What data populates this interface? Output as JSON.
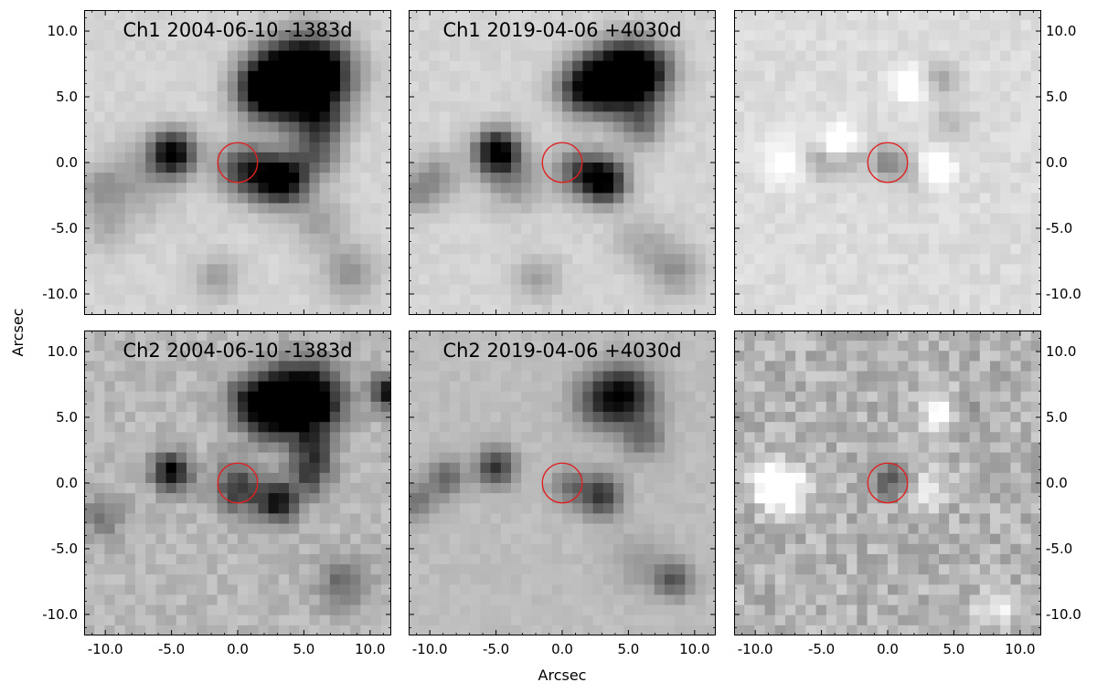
{
  "figure": {
    "xlabel": "Arcsec",
    "ylabel": "Arcsec"
  },
  "chart_data": {
    "type": "heatmap",
    "colormap": "gray",
    "xlim": [
      -11.6,
      11.6
    ],
    "ylim": [
      -11.6,
      11.6
    ],
    "xticks": [
      -10.0,
      -5.0,
      0.0,
      5.0,
      10.0
    ],
    "yticks": [
      10.0,
      5.0,
      0.0,
      -5.0,
      -10.0
    ],
    "xtick_labels": [
      "-10.0",
      "-5.0",
      "0.0",
      "5.0",
      "10.0"
    ],
    "ytick_labels": [
      "10.0",
      "5.0",
      "0.0",
      "-5.0",
      "-10.0"
    ],
    "marker": {
      "shape": "circle",
      "center": [
        0.0,
        0.0
      ],
      "radius": 1.5,
      "color": "#e02020"
    },
    "panels": [
      {
        "title": "Ch1 2004-06-10 -1383d",
        "row": 0,
        "col": 0,
        "kind": "image",
        "background": 0.83,
        "sources": [
          [
            4.8,
            6.4,
            2.2,
            0.8
          ],
          [
            3.2,
            6.0,
            1.8,
            0.55
          ],
          [
            6.4,
            6.9,
            1.8,
            0.5
          ],
          [
            1.8,
            5.6,
            1.5,
            0.5
          ],
          [
            -4.9,
            0.7,
            1.2,
            0.85
          ],
          [
            3.6,
            -1.4,
            1.3,
            0.75
          ],
          [
            1.8,
            -1.0,
            1.4,
            0.45
          ],
          [
            0.1,
            -0.4,
            1.4,
            0.4
          ],
          [
            6.2,
            3.0,
            1.3,
            0.4
          ],
          [
            6.0,
            0.5,
            1.3,
            0.35
          ],
          [
            -7.4,
            -1.4,
            2.0,
            0.2
          ],
          [
            -10.4,
            -2.0,
            1.2,
            0.2
          ],
          [
            6.2,
            -4.6,
            1.4,
            0.2
          ],
          [
            8.5,
            -8.4,
            1.5,
            0.25
          ],
          [
            -1.6,
            -8.8,
            1.2,
            0.2
          ],
          [
            -10.0,
            -5.0,
            1.2,
            0.15
          ]
        ]
      },
      {
        "title": "Ch1 2019-04-06 +4030d",
        "row": 0,
        "col": 1,
        "kind": "image",
        "background": 0.83,
        "sources": [
          [
            4.8,
            6.6,
            1.8,
            0.8
          ],
          [
            3.0,
            6.1,
            1.6,
            0.55
          ],
          [
            6.3,
            6.9,
            1.6,
            0.45
          ],
          [
            1.4,
            5.6,
            1.4,
            0.45
          ],
          [
            -4.9,
            0.8,
            1.2,
            0.9
          ],
          [
            3.2,
            -1.4,
            1.2,
            0.85
          ],
          [
            1.2,
            -0.7,
            1.3,
            0.45
          ],
          [
            6.0,
            2.8,
            1.2,
            0.35
          ],
          [
            -9.4,
            -1.0,
            1.3,
            0.25
          ],
          [
            -11.0,
            -2.4,
            1.0,
            0.25
          ],
          [
            -3.6,
            -1.6,
            1.5,
            0.25
          ],
          [
            8.5,
            -8.2,
            1.4,
            0.25
          ],
          [
            -1.8,
            -8.8,
            1.2,
            0.2
          ],
          [
            6.0,
            -6.0,
            1.5,
            0.15
          ]
        ]
      },
      {
        "title": "",
        "row": 0,
        "col": 2,
        "kind": "difference",
        "background": 0.86,
        "noise": 0.035,
        "sources": [
          [
            -3.6,
            1.4,
            0.9,
            -0.45
          ],
          [
            -3.0,
            0.4,
            0.8,
            0.3
          ],
          [
            0.0,
            0.0,
            0.9,
            0.35
          ],
          [
            2.2,
            -0.8,
            0.8,
            0.2
          ],
          [
            3.6,
            -0.4,
            0.8,
            -0.45
          ],
          [
            1.6,
            6.0,
            0.9,
            -0.25
          ],
          [
            4.0,
            6.4,
            0.9,
            0.2
          ],
          [
            -7.8,
            0.0,
            1.2,
            -0.2
          ],
          [
            -5.0,
            0.2,
            1.0,
            0.25
          ],
          [
            5.0,
            3.0,
            1.0,
            0.15
          ]
        ]
      },
      {
        "title": "Ch2 2004-06-10 -1383d",
        "row": 1,
        "col": 0,
        "kind": "image",
        "background": 0.72,
        "noise": 0.06,
        "sources": [
          [
            4.6,
            6.7,
            1.8,
            0.75
          ],
          [
            2.8,
            5.5,
            1.6,
            0.55
          ],
          [
            1.0,
            6.3,
            1.4,
            0.4
          ],
          [
            6.0,
            6.0,
            1.5,
            0.45
          ],
          [
            11.3,
            6.9,
            0.9,
            0.7
          ],
          [
            -5.0,
            0.8,
            1.0,
            0.75
          ],
          [
            3.0,
            -1.5,
            1.0,
            0.7
          ],
          [
            0.0,
            -0.4,
            1.3,
            0.5
          ],
          [
            5.4,
            0.6,
            1.2,
            0.4
          ],
          [
            5.8,
            2.6,
            1.1,
            0.35
          ],
          [
            8.0,
            -7.6,
            1.4,
            0.3
          ],
          [
            -10.2,
            -2.6,
            1.2,
            0.25
          ]
        ]
      },
      {
        "title": "Ch2 2019-04-06 +4030d",
        "row": 1,
        "col": 1,
        "kind": "image",
        "background": 0.74,
        "sources": [
          [
            4.8,
            6.7,
            1.6,
            0.6
          ],
          [
            2.8,
            6.2,
            1.5,
            0.35
          ],
          [
            -5.0,
            1.2,
            1.0,
            0.55
          ],
          [
            3.0,
            -1.0,
            1.1,
            0.55
          ],
          [
            0.6,
            -0.3,
            1.0,
            0.3
          ],
          [
            -8.8,
            0.4,
            1.0,
            0.35
          ],
          [
            -11.0,
            -1.4,
            1.0,
            0.3
          ],
          [
            6.2,
            3.4,
            1.1,
            0.3
          ],
          [
            8.4,
            -7.4,
            1.0,
            0.4
          ],
          [
            5.8,
            -6.0,
            1.4,
            0.15
          ]
        ]
      },
      {
        "title": "",
        "row": 1,
        "col": 2,
        "kind": "difference",
        "background": 0.7,
        "noise": 0.11,
        "sources": [
          [
            -8.6,
            0.0,
            1.1,
            -0.5
          ],
          [
            -7.6,
            -0.8,
            1.0,
            -0.35
          ],
          [
            0.0,
            0.2,
            1.0,
            0.35
          ],
          [
            3.2,
            -0.6,
            0.9,
            -0.3
          ],
          [
            4.2,
            5.2,
            1.0,
            -0.3
          ],
          [
            5.8,
            4.8,
            1.0,
            0.2
          ],
          [
            8.0,
            -9.6,
            1.0,
            -0.25
          ]
        ]
      }
    ]
  }
}
